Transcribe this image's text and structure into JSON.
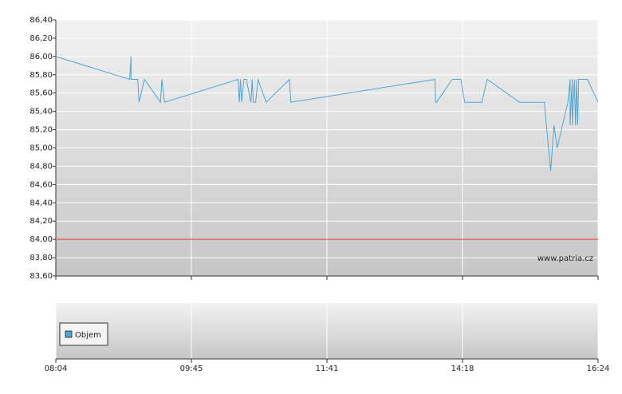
{
  "chart_data": [
    {
      "type": "line",
      "watermark": "www.patria.cz",
      "x": [
        "08:04",
        "08:59",
        "09:00",
        "09:00",
        "09:05",
        "09:06",
        "09:10",
        "09:22",
        "09:23",
        "09:25",
        "10:25",
        "10:26",
        "10:27",
        "10:28",
        "10:30",
        "10:32",
        "10:36",
        "10:37",
        "10:38",
        "10:40",
        "10:42",
        "10:49",
        "11:09",
        "11:10",
        "13:46",
        "13:47",
        "13:48",
        "14:06",
        "14:16",
        "14:20",
        "14:36",
        "14:41",
        "15:11",
        "15:34",
        "15:40",
        "15:43",
        "15:46",
        "15:56",
        "15:58",
        "15:58",
        "16:00",
        "16:00",
        "16:02",
        "16:03",
        "16:04",
        "16:05",
        "16:06",
        "16:14",
        "16:24"
      ],
      "series": [
        {
          "color": "#4ea6d4",
          "values": [
            86.0,
            85.75,
            86.0,
            85.75,
            85.75,
            85.5,
            85.75,
            85.5,
            85.75,
            85.5,
            85.75,
            85.5,
            85.75,
            85.5,
            85.75,
            85.75,
            85.5,
            85.75,
            85.5,
            85.5,
            85.75,
            85.5,
            85.75,
            85.5,
            85.75,
            85.5,
            85.5,
            85.75,
            85.75,
            85.5,
            85.5,
            85.75,
            85.5,
            85.5,
            84.75,
            85.25,
            85.0,
            85.5,
            85.75,
            85.25,
            85.75,
            85.25,
            85.75,
            85.25,
            85.75,
            85.25,
            85.75,
            85.75,
            85.5
          ]
        }
      ],
      "xticks": [
        "08:04",
        "09:45",
        "11:41",
        "14:18",
        "16:24"
      ],
      "ylim": [
        83.6,
        86.4
      ],
      "yticks": [
        {
          "value": 83.6,
          "label": "83,60"
        },
        {
          "value": 83.8,
          "label": "83,80"
        },
        {
          "value": 84.0,
          "label": "84,00"
        },
        {
          "value": 84.2,
          "label": "84,20"
        },
        {
          "value": 84.4,
          "label": "84,40"
        },
        {
          "value": 84.6,
          "label": "84,60"
        },
        {
          "value": 84.8,
          "label": "84,80"
        },
        {
          "value": 85.0,
          "label": "85,00"
        },
        {
          "value": 85.2,
          "label": "85,20"
        },
        {
          "value": 85.4,
          "label": "85,40"
        },
        {
          "value": 85.6,
          "label": "85,60"
        },
        {
          "value": 85.8,
          "label": "85,80"
        },
        {
          "value": 86.0,
          "label": "86,00"
        },
        {
          "value": 86.2,
          "label": "86,20"
        },
        {
          "value": 86.4,
          "label": "86,40"
        }
      ],
      "reference_line": {
        "value": 84.0,
        "color": "#e05050"
      },
      "grid": true
    },
    {
      "type": "bar",
      "series": [
        {
          "name": "Objem",
          "color": "#4ea6d4",
          "values": []
        }
      ]
    }
  ]
}
